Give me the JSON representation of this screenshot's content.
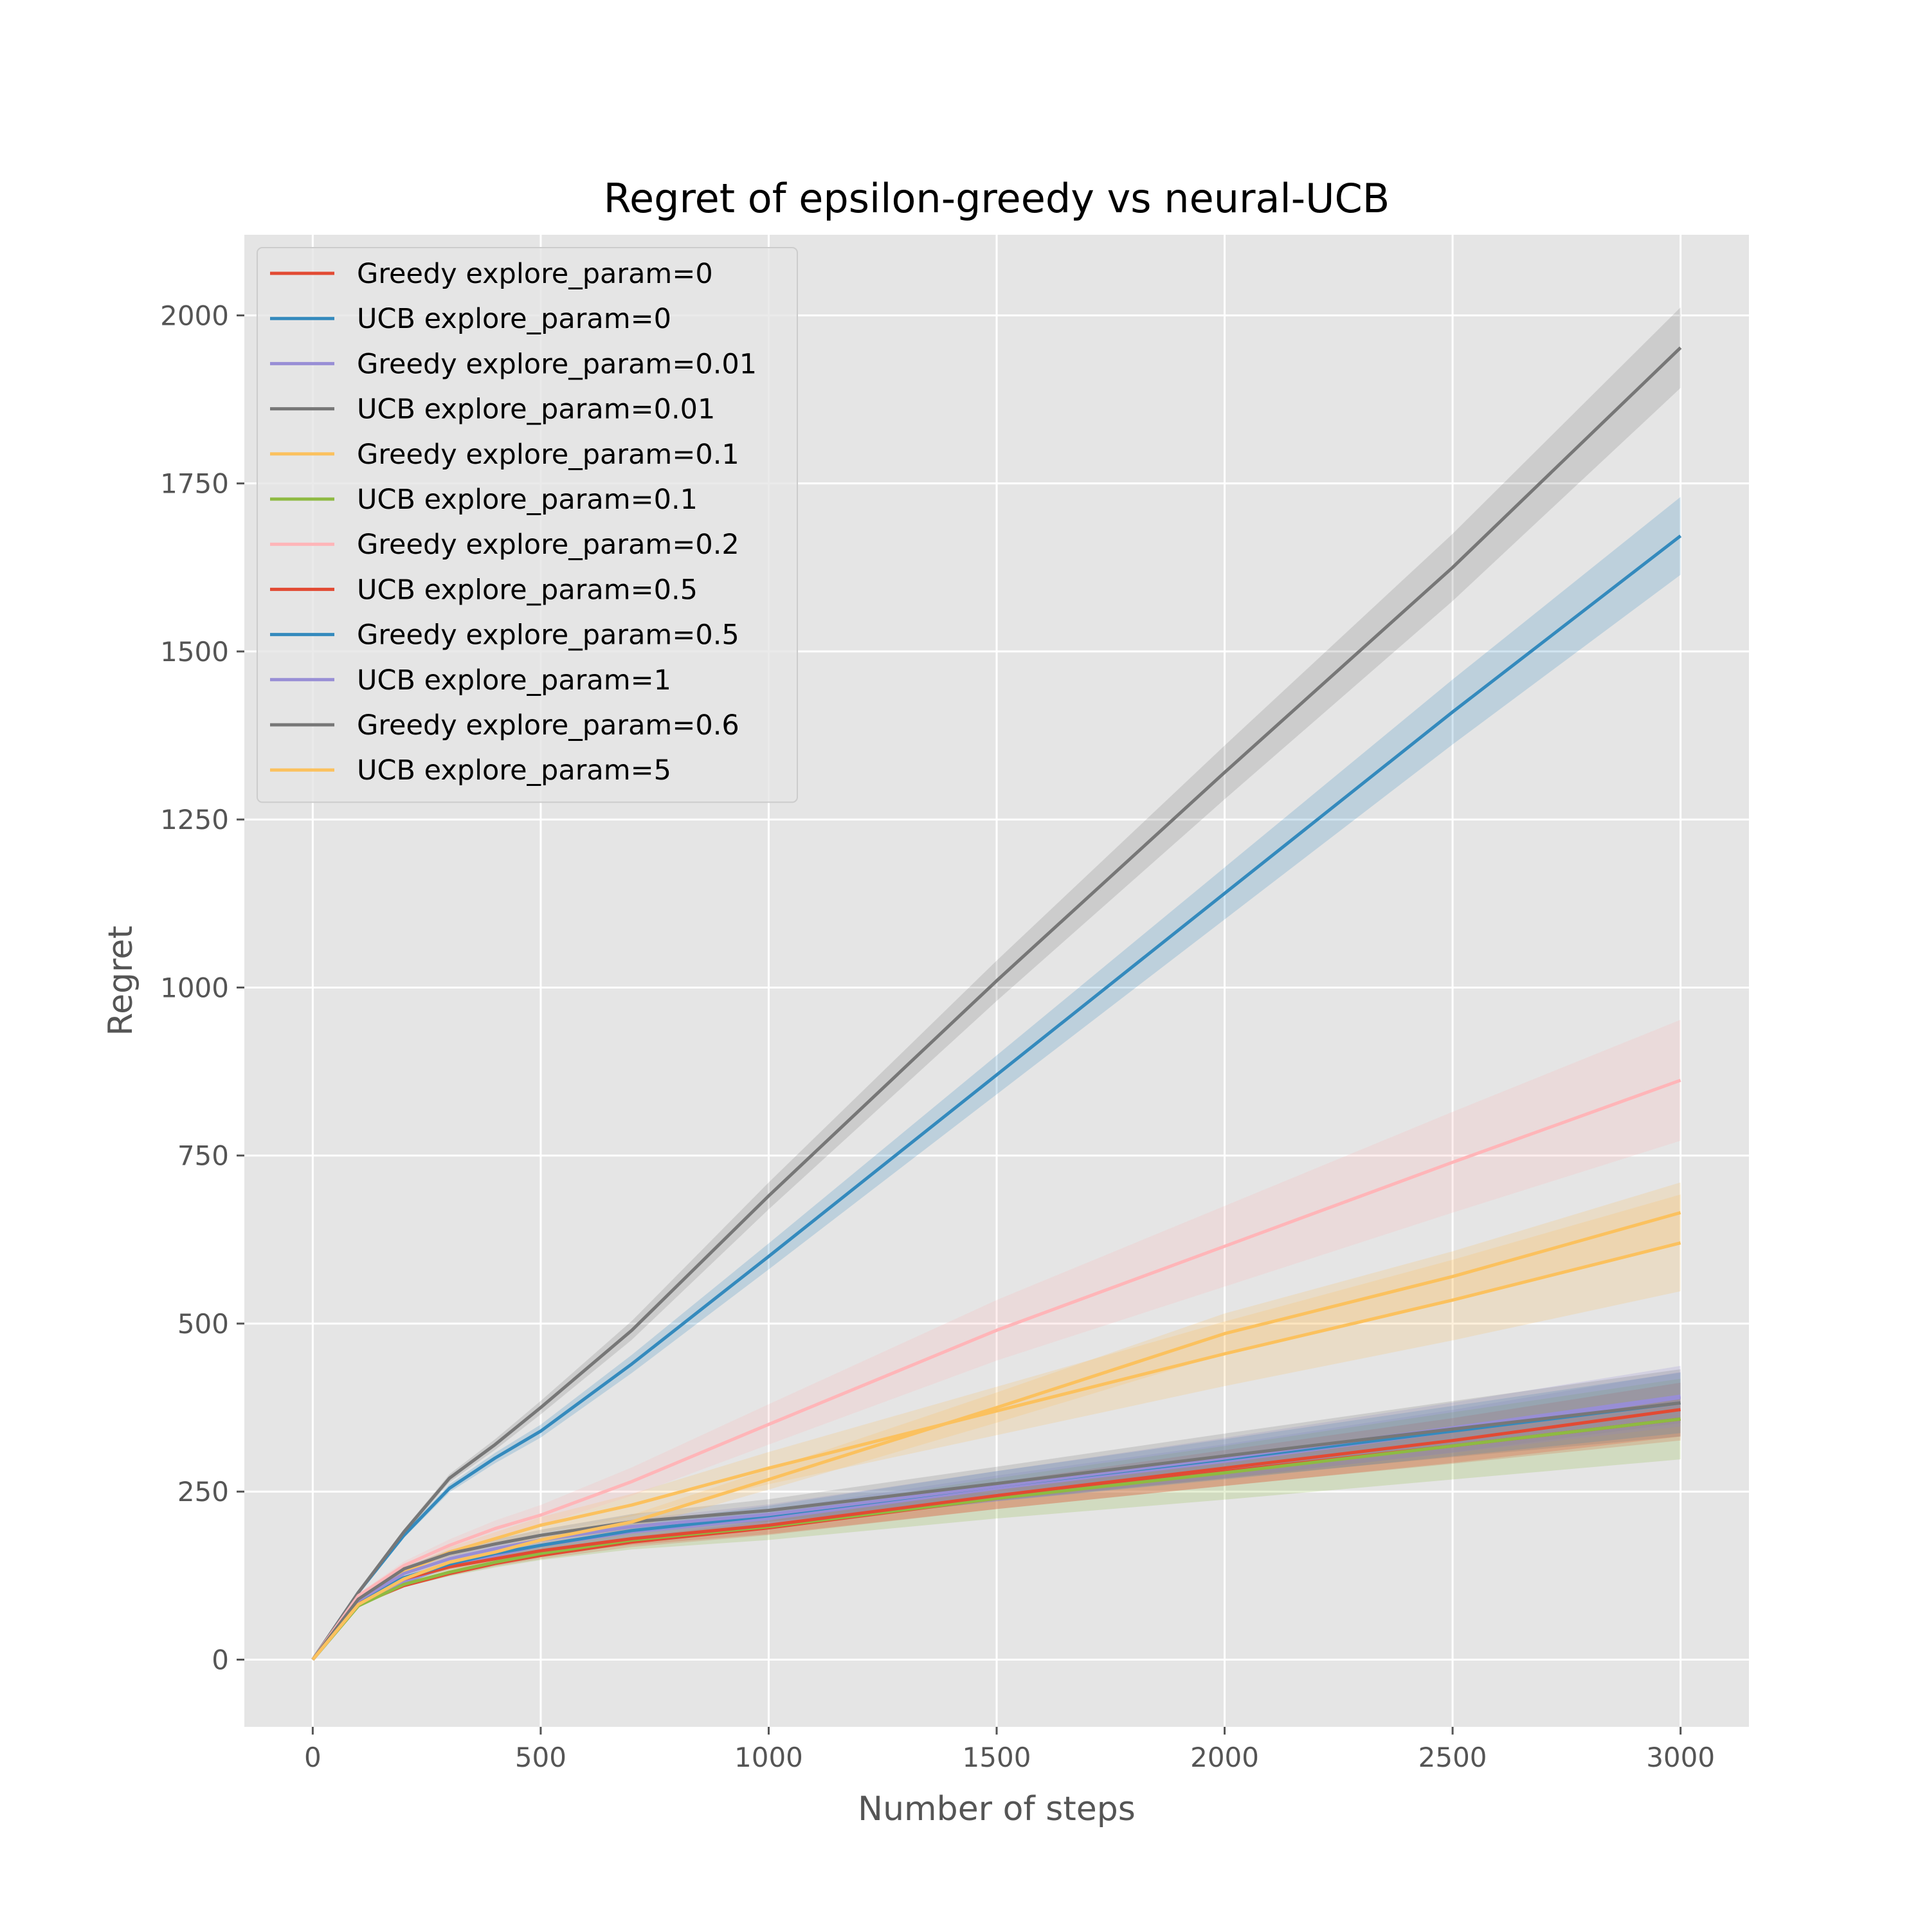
{
  "chart_data": {
    "type": "line",
    "title": "Regret of epsilon-greedy vs neural-UCB",
    "xlabel": "Number of steps",
    "ylabel": "Regret",
    "xlim": [
      -150,
      3150
    ],
    "ylim": [
      -100,
      2120
    ],
    "xticks": [
      0,
      500,
      1000,
      1500,
      2000,
      2500,
      3000
    ],
    "yticks": [
      0,
      250,
      500,
      750,
      1000,
      1250,
      1500,
      1750,
      2000
    ],
    "grid": true,
    "legend_position": "upper-left",
    "x": [
      0,
      100,
      200,
      300,
      400,
      500,
      700,
      1000,
      1500,
      2000,
      2500,
      3000
    ],
    "series": [
      {
        "name": "Greedy explore_param=0",
        "color": "#E24A33",
        "values": [
          0,
          82,
          110,
          128,
          143,
          155,
          175,
          196,
          240,
          280,
          318,
          358
        ],
        "band": 32
      },
      {
        "name": "UCB explore_param=0",
        "color": "#348ABD",
        "values": [
          0,
          100,
          185,
          255,
          300,
          340,
          440,
          600,
          870,
          1140,
          1410,
          1672
        ],
        "band": 58
      },
      {
        "name": "Greedy explore_param=0.01",
        "color": "#988ED5",
        "values": [
          0,
          80,
          115,
          140,
          155,
          170,
          190,
          210,
          255,
          295,
          340,
          390
        ],
        "band": 38
      },
      {
        "name": "UCB explore_param=0.01",
        "color": "#777777",
        "values": [
          0,
          100,
          190,
          270,
          320,
          375,
          490,
          690,
          1010,
          1320,
          1625,
          1952
        ],
        "band": 60
      },
      {
        "name": "Greedy explore_param=0.1",
        "color": "#FBC15E",
        "values": [
          0,
          85,
          130,
          160,
          180,
          200,
          230,
          285,
          370,
          455,
          535,
          620
        ],
        "band": 72
      },
      {
        "name": "UCB explore_param=0.1",
        "color": "#8EBA42",
        "values": [
          0,
          80,
          112,
          130,
          145,
          158,
          178,
          198,
          240,
          278,
          318,
          358
        ],
        "band": 60
      },
      {
        "name": "Greedy explore_param=0.2",
        "color": "#FFB5B8",
        "values": [
          0,
          95,
          140,
          170,
          195,
          215,
          265,
          350,
          490,
          615,
          740,
          862
        ],
        "band": 90
      },
      {
        "name": "UCB explore_param=0.5",
        "color": "#E24A33",
        "values": [
          0,
          85,
          120,
          138,
          150,
          162,
          180,
          200,
          244,
          285,
          326,
          372
        ],
        "band": 40
      },
      {
        "name": "Greedy explore_param=0.5",
        "color": "#348ABD",
        "values": [
          0,
          88,
          122,
          142,
          158,
          170,
          192,
          214,
          258,
          298,
          340,
          382
        ],
        "band": 45
      },
      {
        "name": "UCB explore_param=1",
        "color": "#988ED5",
        "values": [
          0,
          88,
          128,
          150,
          165,
          178,
          198,
          216,
          258,
          300,
          345,
          392
        ],
        "band": 45
      },
      {
        "name": "Greedy explore_param=0.6",
        "color": "#777777",
        "values": [
          0,
          90,
          135,
          158,
          172,
          185,
          205,
          222,
          262,
          303,
          343,
          382
        ],
        "band": 50
      },
      {
        "name": "UCB explore_param=5",
        "color": "#FBC15E",
        "values": [
          0,
          82,
          120,
          145,
          160,
          178,
          205,
          268,
          375,
          485,
          570,
          665
        ],
        "band": 45
      }
    ]
  }
}
